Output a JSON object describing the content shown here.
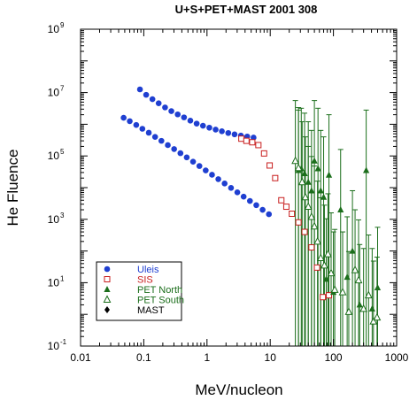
{
  "chart_data": {
    "type": "scatter",
    "title": "U+S+PET+MAST 2001 308",
    "xlabel": "MeV/nucleon",
    "ylabel": "He Fluence",
    "xscale": "log",
    "yscale": "log",
    "xlim": [
      0.01,
      1000
    ],
    "ylim": [
      0.1,
      1000000000
    ],
    "x_ticks": [
      {
        "value": 0.01,
        "label": "0.01"
      },
      {
        "value": 0.1,
        "label": "0.1"
      },
      {
        "value": 1,
        "label": "1"
      },
      {
        "value": 10,
        "label": "10"
      },
      {
        "value": 100,
        "label": "100"
      },
      {
        "value": 1000,
        "label": "1000"
      }
    ],
    "y_ticks": [
      {
        "value": 0.1,
        "mantissa": "10",
        "exp": "-1"
      },
      {
        "value": 10,
        "mantissa": "10",
        "exp": "1"
      },
      {
        "value": 1000,
        "mantissa": "10",
        "exp": "3"
      },
      {
        "value": 100000,
        "mantissa": "10",
        "exp": "5"
      },
      {
        "value": 10000000,
        "mantissa": "10",
        "exp": "7"
      },
      {
        "value": 1000000000,
        "mantissa": "10",
        "exp": "9"
      }
    ],
    "legend_position": "bottom-left",
    "series": [
      {
        "name": "Uleis",
        "color": "#1f3fd1",
        "marker": "filled-circle",
        "legend_color": "#1f3fd1",
        "points": [
          [
            0.087,
            12600000
          ],
          [
            0.109,
            8500000
          ],
          [
            0.137,
            6200000
          ],
          [
            0.172,
            4600000
          ],
          [
            0.217,
            3400000
          ],
          [
            0.273,
            2600000
          ],
          [
            0.344,
            2050000
          ],
          [
            0.433,
            1650000
          ],
          [
            0.545,
            1300000
          ],
          [
            0.686,
            1050000
          ],
          [
            0.864,
            900000
          ],
          [
            1.09,
            780000
          ],
          [
            1.37,
            680000
          ],
          [
            1.72,
            600000
          ],
          [
            2.17,
            530000
          ],
          [
            2.73,
            480000
          ],
          [
            3.44,
            440000
          ],
          [
            4.33,
            410000
          ],
          [
            5.45,
            380000
          ],
          [
            0.048,
            1600000
          ],
          [
            0.06,
            1250000
          ],
          [
            0.076,
            950000
          ],
          [
            0.095,
            720000
          ],
          [
            0.12,
            540000
          ],
          [
            0.151,
            400000
          ],
          [
            0.19,
            300000
          ],
          [
            0.24,
            220000
          ],
          [
            0.302,
            165000
          ],
          [
            0.38,
            122000
          ],
          [
            0.478,
            90000
          ],
          [
            0.602,
            66000
          ],
          [
            0.758,
            48000
          ],
          [
            0.954,
            35000
          ],
          [
            1.2,
            25500
          ],
          [
            1.51,
            18500
          ],
          [
            1.9,
            13500
          ],
          [
            2.4,
            9800
          ],
          [
            3.02,
            7100
          ],
          [
            3.8,
            5200
          ],
          [
            4.78,
            3800
          ],
          [
            6.02,
            2800
          ],
          [
            7.58,
            2000
          ],
          [
            9.54,
            1450
          ]
        ]
      },
      {
        "name": "SIS",
        "color": "#c81e1e",
        "marker": "open-square",
        "legend_color": "#c81e1e",
        "points": [
          [
            3.5,
            350000
          ],
          [
            4.2,
            300000
          ],
          [
            5.2,
            270000
          ],
          [
            6.5,
            220000
          ],
          [
            8.0,
            120000
          ],
          [
            9.8,
            50000
          ],
          [
            12,
            20000
          ],
          [
            15,
            4000
          ],
          [
            18,
            2500
          ],
          [
            22,
            1500
          ],
          [
            28,
            800
          ],
          [
            35,
            400
          ],
          [
            45,
            130
          ],
          [
            55,
            30
          ],
          [
            68,
            3.5
          ],
          [
            85,
            4
          ]
        ]
      },
      {
        "name": "PET North",
        "color": "#1b6e1b",
        "marker": "filled-triangle",
        "legend_color": "#1b6e1b",
        "errorbar": true,
        "points": [
          [
            28,
            35000
          ],
          [
            31,
            40000
          ],
          [
            35,
            28000
          ],
          [
            40,
            15000
          ],
          [
            45,
            8000
          ],
          [
            50,
            70000
          ],
          [
            57,
            40000
          ],
          [
            63,
            8000
          ],
          [
            70,
            5000
          ],
          [
            77,
            13
          ],
          [
            85,
            25000
          ],
          [
            100,
            5
          ],
          [
            130,
            2000
          ],
          [
            165,
            15
          ],
          [
            200,
            100
          ],
          [
            260,
            2
          ],
          [
            330,
            35000
          ],
          [
            410,
            1.5
          ],
          [
            500,
            7
          ]
        ]
      },
      {
        "name": "PET South",
        "color": "#1b6e1b",
        "marker": "open-triangle",
        "legend_color": "#1b6e1b",
        "errorbar": true,
        "points": [
          [
            25,
            70000
          ],
          [
            28,
            42000
          ],
          [
            32,
            15000
          ],
          [
            36,
            5000
          ],
          [
            40,
            2500
          ],
          [
            45,
            1200
          ],
          [
            50,
            600
          ],
          [
            56,
            200
          ],
          [
            63,
            60
          ],
          [
            72,
            35
          ],
          [
            82,
            80
          ],
          [
            92,
            20
          ],
          [
            105,
            6
          ],
          [
            140,
            5
          ],
          [
            175,
            1.2
          ],
          [
            220,
            25
          ],
          [
            250,
            12
          ],
          [
            300,
            1.5
          ],
          [
            360,
            4
          ],
          [
            430,
            0.6
          ],
          [
            490,
            0.8
          ]
        ]
      },
      {
        "name": "MAST",
        "color": "#000000",
        "marker": "filled-diamond",
        "legend_color": "#000000",
        "points": []
      }
    ]
  }
}
